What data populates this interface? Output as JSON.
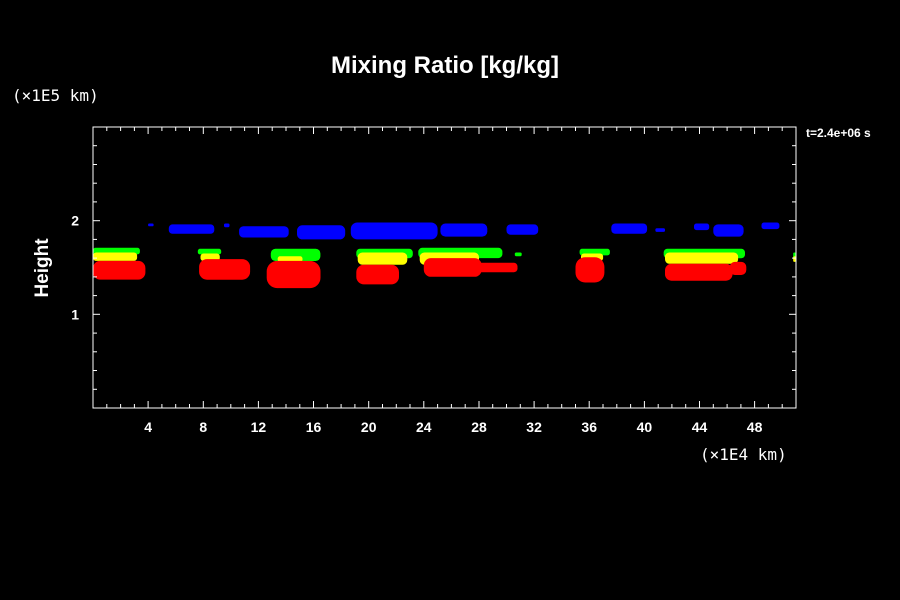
{
  "chart_data": {
    "type": "heatmap",
    "title": "Mixing Ratio [kg/kg]",
    "ylabel": "Height",
    "y_scale_label": "(×1E5 km)",
    "x_scale_label": "(×1E4 km)",
    "time_label": "t=2.4e+06 s",
    "xlim": [
      0,
      51
    ],
    "ylim": [
      0,
      3
    ],
    "x_ticks": [
      4,
      8,
      12,
      16,
      20,
      24,
      28,
      32,
      36,
      40,
      44,
      48
    ],
    "x_tick_labels": [
      "4",
      "8",
      "12",
      "16",
      "20",
      "24",
      "28",
      "32",
      "36",
      "40",
      "44",
      "48"
    ],
    "y_ticks": [
      1,
      2
    ],
    "y_tick_labels": [
      "1",
      "2"
    ],
    "x_minor_step": 1,
    "y_minor_step": 0.2,
    "grid": false,
    "colors": {
      "background": "#000000",
      "frame": "#ffffff",
      "blue": "#0000ff",
      "green": "#00ff00",
      "yellow": "#ffff00",
      "red": "#ff0000"
    },
    "series": [
      {
        "color": "blue",
        "patches": [
          {
            "x": [
              4.0,
              4.4
            ],
            "y": [
              1.94,
              1.97
            ]
          },
          {
            "x": [
              5.5,
              8.8
            ],
            "y": [
              1.86,
              1.96
            ]
          },
          {
            "x": [
              9.5,
              9.9
            ],
            "y": [
              1.93,
              1.97
            ]
          },
          {
            "x": [
              10.6,
              14.2
            ],
            "y": [
              1.82,
              1.94
            ]
          },
          {
            "x": [
              14.8,
              18.3
            ],
            "y": [
              1.8,
              1.95
            ]
          },
          {
            "x": [
              18.7,
              25.0
            ],
            "y": [
              1.8,
              1.98
            ]
          },
          {
            "x": [
              25.2,
              28.6
            ],
            "y": [
              1.83,
              1.97
            ]
          },
          {
            "x": [
              30.0,
              32.3
            ],
            "y": [
              1.85,
              1.96
            ]
          },
          {
            "x": [
              37.6,
              40.2
            ],
            "y": [
              1.86,
              1.97
            ]
          },
          {
            "x": [
              40.8,
              41.5
            ],
            "y": [
              1.88,
              1.92
            ]
          },
          {
            "x": [
              43.6,
              44.7
            ],
            "y": [
              1.9,
              1.97
            ]
          },
          {
            "x": [
              45.0,
              47.2
            ],
            "y": [
              1.83,
              1.96
            ]
          },
          {
            "x": [
              48.5,
              49.8
            ],
            "y": [
              1.91,
              1.98
            ]
          }
        ]
      },
      {
        "color": "green",
        "patches": [
          {
            "x": [
              0.0,
              3.4
            ],
            "y": [
              1.64,
              1.71
            ]
          },
          {
            "x": [
              7.6,
              9.3
            ],
            "y": [
              1.64,
              1.7
            ]
          },
          {
            "x": [
              12.9,
              16.5
            ],
            "y": [
              1.57,
              1.7
            ]
          },
          {
            "x": [
              19.1,
              23.2
            ],
            "y": [
              1.6,
              1.7
            ]
          },
          {
            "x": [
              23.6,
              29.7
            ],
            "y": [
              1.6,
              1.71
            ]
          },
          {
            "x": [
              30.6,
              31.1
            ],
            "y": [
              1.62,
              1.66
            ]
          },
          {
            "x": [
              35.3,
              37.5
            ],
            "y": [
              1.63,
              1.7
            ]
          },
          {
            "x": [
              41.4,
              47.3
            ],
            "y": [
              1.6,
              1.7
            ]
          },
          {
            "x": [
              50.8,
              51.0
            ],
            "y": [
              1.58,
              1.66
            ]
          }
        ]
      },
      {
        "color": "yellow",
        "patches": [
          {
            "x": [
              0.0,
              3.2
            ],
            "y": [
              1.57,
              1.66
            ]
          },
          {
            "x": [
              7.8,
              9.2
            ],
            "y": [
              1.57,
              1.65
            ]
          },
          {
            "x": [
              13.4,
              15.2
            ],
            "y": [
              1.56,
              1.62
            ]
          },
          {
            "x": [
              19.2,
              22.8
            ],
            "y": [
              1.53,
              1.66
            ]
          },
          {
            "x": [
              23.7,
              28.0
            ],
            "y": [
              1.53,
              1.66
            ]
          },
          {
            "x": [
              35.4,
              37.0
            ],
            "y": [
              1.57,
              1.65
            ]
          },
          {
            "x": [
              41.5,
              46.8
            ],
            "y": [
              1.54,
              1.66
            ]
          },
          {
            "x": [
              50.8,
              51.0
            ],
            "y": [
              1.56,
              1.62
            ]
          }
        ]
      },
      {
        "color": "red",
        "patches": [
          {
            "x": [
              0.0,
              3.8
            ],
            "y": [
              1.37,
              1.57
            ]
          },
          {
            "x": [
              7.7,
              11.4
            ],
            "y": [
              1.37,
              1.59
            ]
          },
          {
            "x": [
              12.6,
              16.5
            ],
            "y": [
              1.28,
              1.57
            ]
          },
          {
            "x": [
              19.1,
              22.2
            ],
            "y": [
              1.32,
              1.53
            ]
          },
          {
            "x": [
              24.0,
              28.2
            ],
            "y": [
              1.4,
              1.6
            ]
          },
          {
            "x": [
              26.8,
              30.8
            ],
            "y": [
              1.45,
              1.55
            ]
          },
          {
            "x": [
              35.0,
              37.1
            ],
            "y": [
              1.34,
              1.61
            ]
          },
          {
            "x": [
              41.5,
              46.4
            ],
            "y": [
              1.36,
              1.54
            ]
          },
          {
            "x": [
              46.2,
              47.4
            ],
            "y": [
              1.42,
              1.56
            ]
          }
        ]
      }
    ]
  }
}
